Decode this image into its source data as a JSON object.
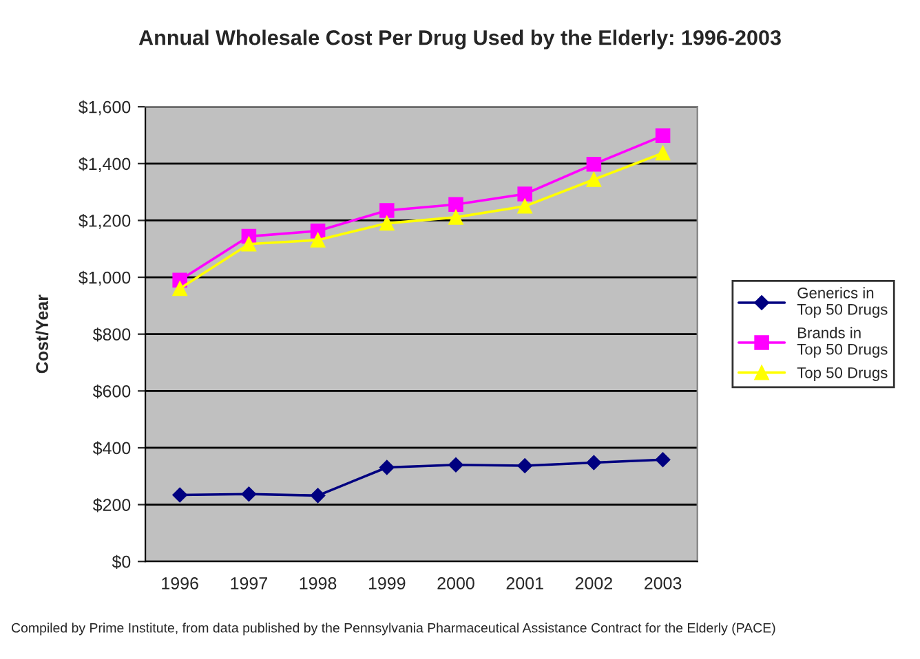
{
  "chart_data": {
    "type": "line",
    "title": "Annual Wholesale Cost Per Drug Used by the Elderly: 1996-2003",
    "ylabel": "Cost/Year",
    "categories": [
      "1996",
      "1997",
      "1998",
      "1999",
      "2000",
      "2001",
      "2002",
      "2003"
    ],
    "series": [
      {
        "name": "Generics in\nTop 50 Drugs",
        "color": "#000080",
        "marker": "diamond",
        "values": [
          234,
          237,
          232,
          331,
          340,
          337,
          348,
          358
        ]
      },
      {
        "name": "Brands in\nTop 50 Drugs",
        "color": "#ff00ff",
        "marker": "square",
        "values": [
          990,
          1144,
          1163,
          1235,
          1256,
          1293,
          1398,
          1498
        ]
      },
      {
        "name": "Top 50 Drugs",
        "color": "#ffff00",
        "marker": "triangle",
        "values": [
          960,
          1117,
          1131,
          1190,
          1211,
          1250,
          1344,
          1437
        ]
      }
    ],
    "ylim": [
      0,
      1600
    ],
    "yticks": [
      {
        "value": 0,
        "label": "$0"
      },
      {
        "value": 200,
        "label": "$200"
      },
      {
        "value": 400,
        "label": "$400"
      },
      {
        "value": 600,
        "label": "$600"
      },
      {
        "value": 800,
        "label": "$800"
      },
      {
        "value": 1000,
        "label": "$1,000"
      },
      {
        "value": 1200,
        "label": "$1,200"
      },
      {
        "value": 1400,
        "label": "$1,400"
      },
      {
        "value": 1600,
        "label": "$1,600"
      }
    ],
    "grid": "y",
    "legend": "right",
    "annotations": [
      "Compiled by Prime Institute, from data published by the Pennsylvania Pharmaceutical Assistance Contract for the Elderly (PACE)"
    ]
  }
}
